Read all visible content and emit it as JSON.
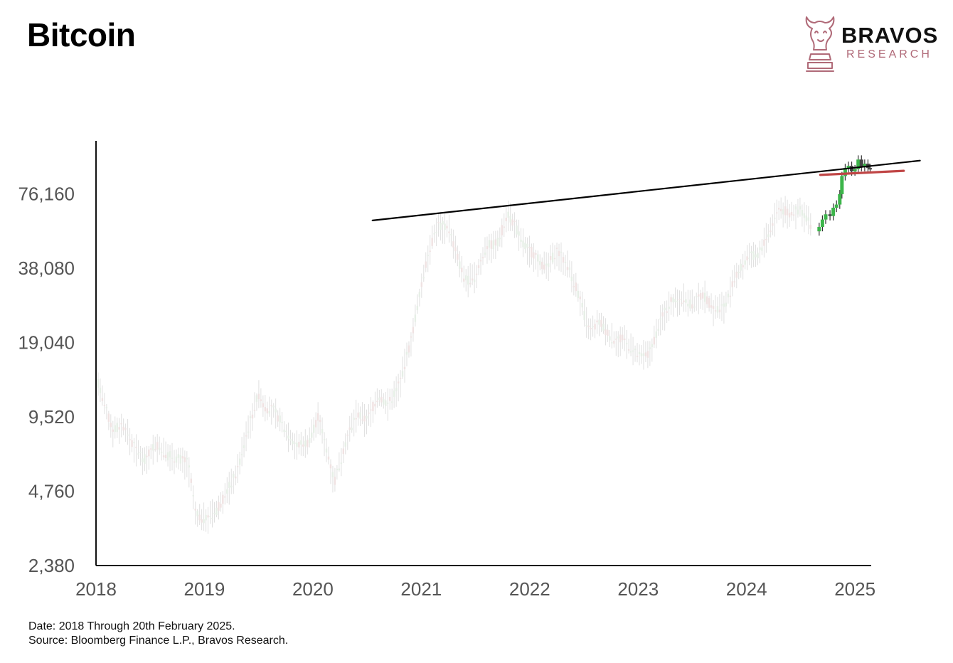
{
  "header": {
    "title": "Bitcoin"
  },
  "brand": {
    "name": "BRAVOS",
    "subtitle": "RESEARCH",
    "icon": "bull-knight-icon",
    "accent": "#b06a78"
  },
  "footer": {
    "date_note": "Date: 2018 Through 20th February 2025.",
    "source_note": "Source: Bloomberg Finance L.P., Bravos Research."
  },
  "chart_data": {
    "type": "line",
    "title": "Bitcoin",
    "scale": "log",
    "xlim": [
      2018.0,
      2025.15
    ],
    "ylim": [
      2380,
      125000
    ],
    "x_ticks": [
      "2018",
      "2019",
      "2020",
      "2021",
      "2022",
      "2023",
      "2024",
      "2025"
    ],
    "y_ticks": [
      {
        "value": 2380,
        "label": "2,380"
      },
      {
        "value": 4760,
        "label": "4,760"
      },
      {
        "value": 9520,
        "label": "9,520"
      },
      {
        "value": 19040,
        "label": "19,040"
      },
      {
        "value": 38080,
        "label": "38,080"
      },
      {
        "value": 76160,
        "label": "76,160"
      }
    ],
    "grid": false,
    "colors": {
      "faded_candles": "#e3e3e3",
      "recent_up": "#3cb54a",
      "recent_down": "#444444",
      "resistance": "#000000",
      "support": "#c04545"
    },
    "series": [
      {
        "style": "faded-candles",
        "x": [
          2018.0,
          2018.08,
          2018.15,
          2018.25,
          2018.35,
          2018.45,
          2018.55,
          2018.65,
          2018.75,
          2018.85,
          2018.92,
          2019.0,
          2019.1,
          2019.2,
          2019.3,
          2019.4,
          2019.5,
          2019.55,
          2019.65,
          2019.75,
          2019.85,
          2019.95,
          2020.05,
          2020.13,
          2020.2,
          2020.3,
          2020.4,
          2020.5,
          2020.6,
          2020.7,
          2020.8,
          2020.9,
          2021.0,
          2021.05,
          2021.15,
          2021.25,
          2021.35,
          2021.4,
          2021.5,
          2021.6,
          2021.7,
          2021.8,
          2021.85,
          2021.95,
          2022.05,
          2022.15,
          2022.25,
          2022.35,
          2022.45,
          2022.55,
          2022.65,
          2022.75,
          2022.87,
          2023.0,
          2023.1,
          2023.2,
          2023.3,
          2023.4,
          2023.5,
          2023.6,
          2023.7,
          2023.8,
          2023.9,
          2024.0,
          2024.1,
          2024.2,
          2024.3,
          2024.4,
          2024.5,
          2024.6
        ],
        "values": [
          14000,
          10500,
          8500,
          8800,
          7200,
          6400,
          7400,
          6700,
          6500,
          6200,
          3800,
          3700,
          3900,
          4700,
          5700,
          8500,
          11800,
          10500,
          10000,
          8400,
          7300,
          7500,
          9500,
          7000,
          5200,
          7500,
          9700,
          9300,
          11500,
          10800,
          13000,
          19000,
          32000,
          42000,
          57000,
          56000,
          40000,
          34000,
          35000,
          47000,
          48000,
          64000,
          58000,
          47000,
          43000,
          38000,
          45000,
          39000,
          30000,
          21000,
          23000,
          19800,
          19500,
          16700,
          17000,
          23000,
          28000,
          29000,
          27000,
          30000,
          26000,
          27000,
          35000,
          42000,
          43000,
          52000,
          67000,
          63000,
          66000,
          57000
        ]
      },
      {
        "style": "highlighted-candles",
        "x": [
          2024.67,
          2024.7,
          2024.73,
          2024.77,
          2024.8,
          2024.83,
          2024.86,
          2024.88,
          2024.91,
          2024.94,
          2024.97,
          2025.0,
          2025.03,
          2025.06,
          2025.09,
          2025.12,
          2025.14
        ],
        "values": [
          56000,
          60000,
          63000,
          62000,
          67000,
          69000,
          76000,
          90000,
          97000,
          99000,
          94000,
          96000,
          105000,
          98000,
          101000,
          97000,
          96000
        ]
      }
    ],
    "annotations": [
      {
        "type": "trendline",
        "color": "#000000",
        "from": {
          "x": 2020.55,
          "y": 59500
        },
        "to": {
          "x": 2025.6,
          "y": 104000
        }
      },
      {
        "type": "trendline",
        "color": "#c04545",
        "from": {
          "x": 2024.68,
          "y": 91000
        },
        "to": {
          "x": 2025.45,
          "y": 94500
        }
      }
    ]
  }
}
